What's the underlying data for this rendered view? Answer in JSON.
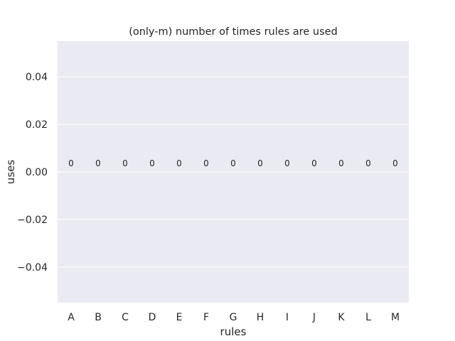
{
  "chart_data": {
    "type": "bar",
    "title": "(only-m) number of times rules are used",
    "xlabel": "rules",
    "ylabel": "uses",
    "categories": [
      "A",
      "B",
      "C",
      "D",
      "E",
      "F",
      "G",
      "H",
      "I",
      "J",
      "K",
      "L",
      "M"
    ],
    "values": [
      0,
      0,
      0,
      0,
      0,
      0,
      0,
      0,
      0,
      0,
      0,
      0,
      0
    ],
    "data_labels": [
      "0",
      "0",
      "0",
      "0",
      "0",
      "0",
      "0",
      "0",
      "0",
      "0",
      "0",
      "0",
      "0"
    ],
    "ylim": [
      -0.055,
      0.055
    ],
    "yticks": [
      -0.04,
      -0.02,
      0.0,
      0.02,
      0.04
    ],
    "ytick_labels": [
      "−0.04",
      "−0.02",
      "0.00",
      "0.02",
      "0.04"
    ],
    "grid": true,
    "colors": {
      "plot_background": "#eaeaf2",
      "grid": "#ffffff",
      "text": "#262626"
    }
  }
}
